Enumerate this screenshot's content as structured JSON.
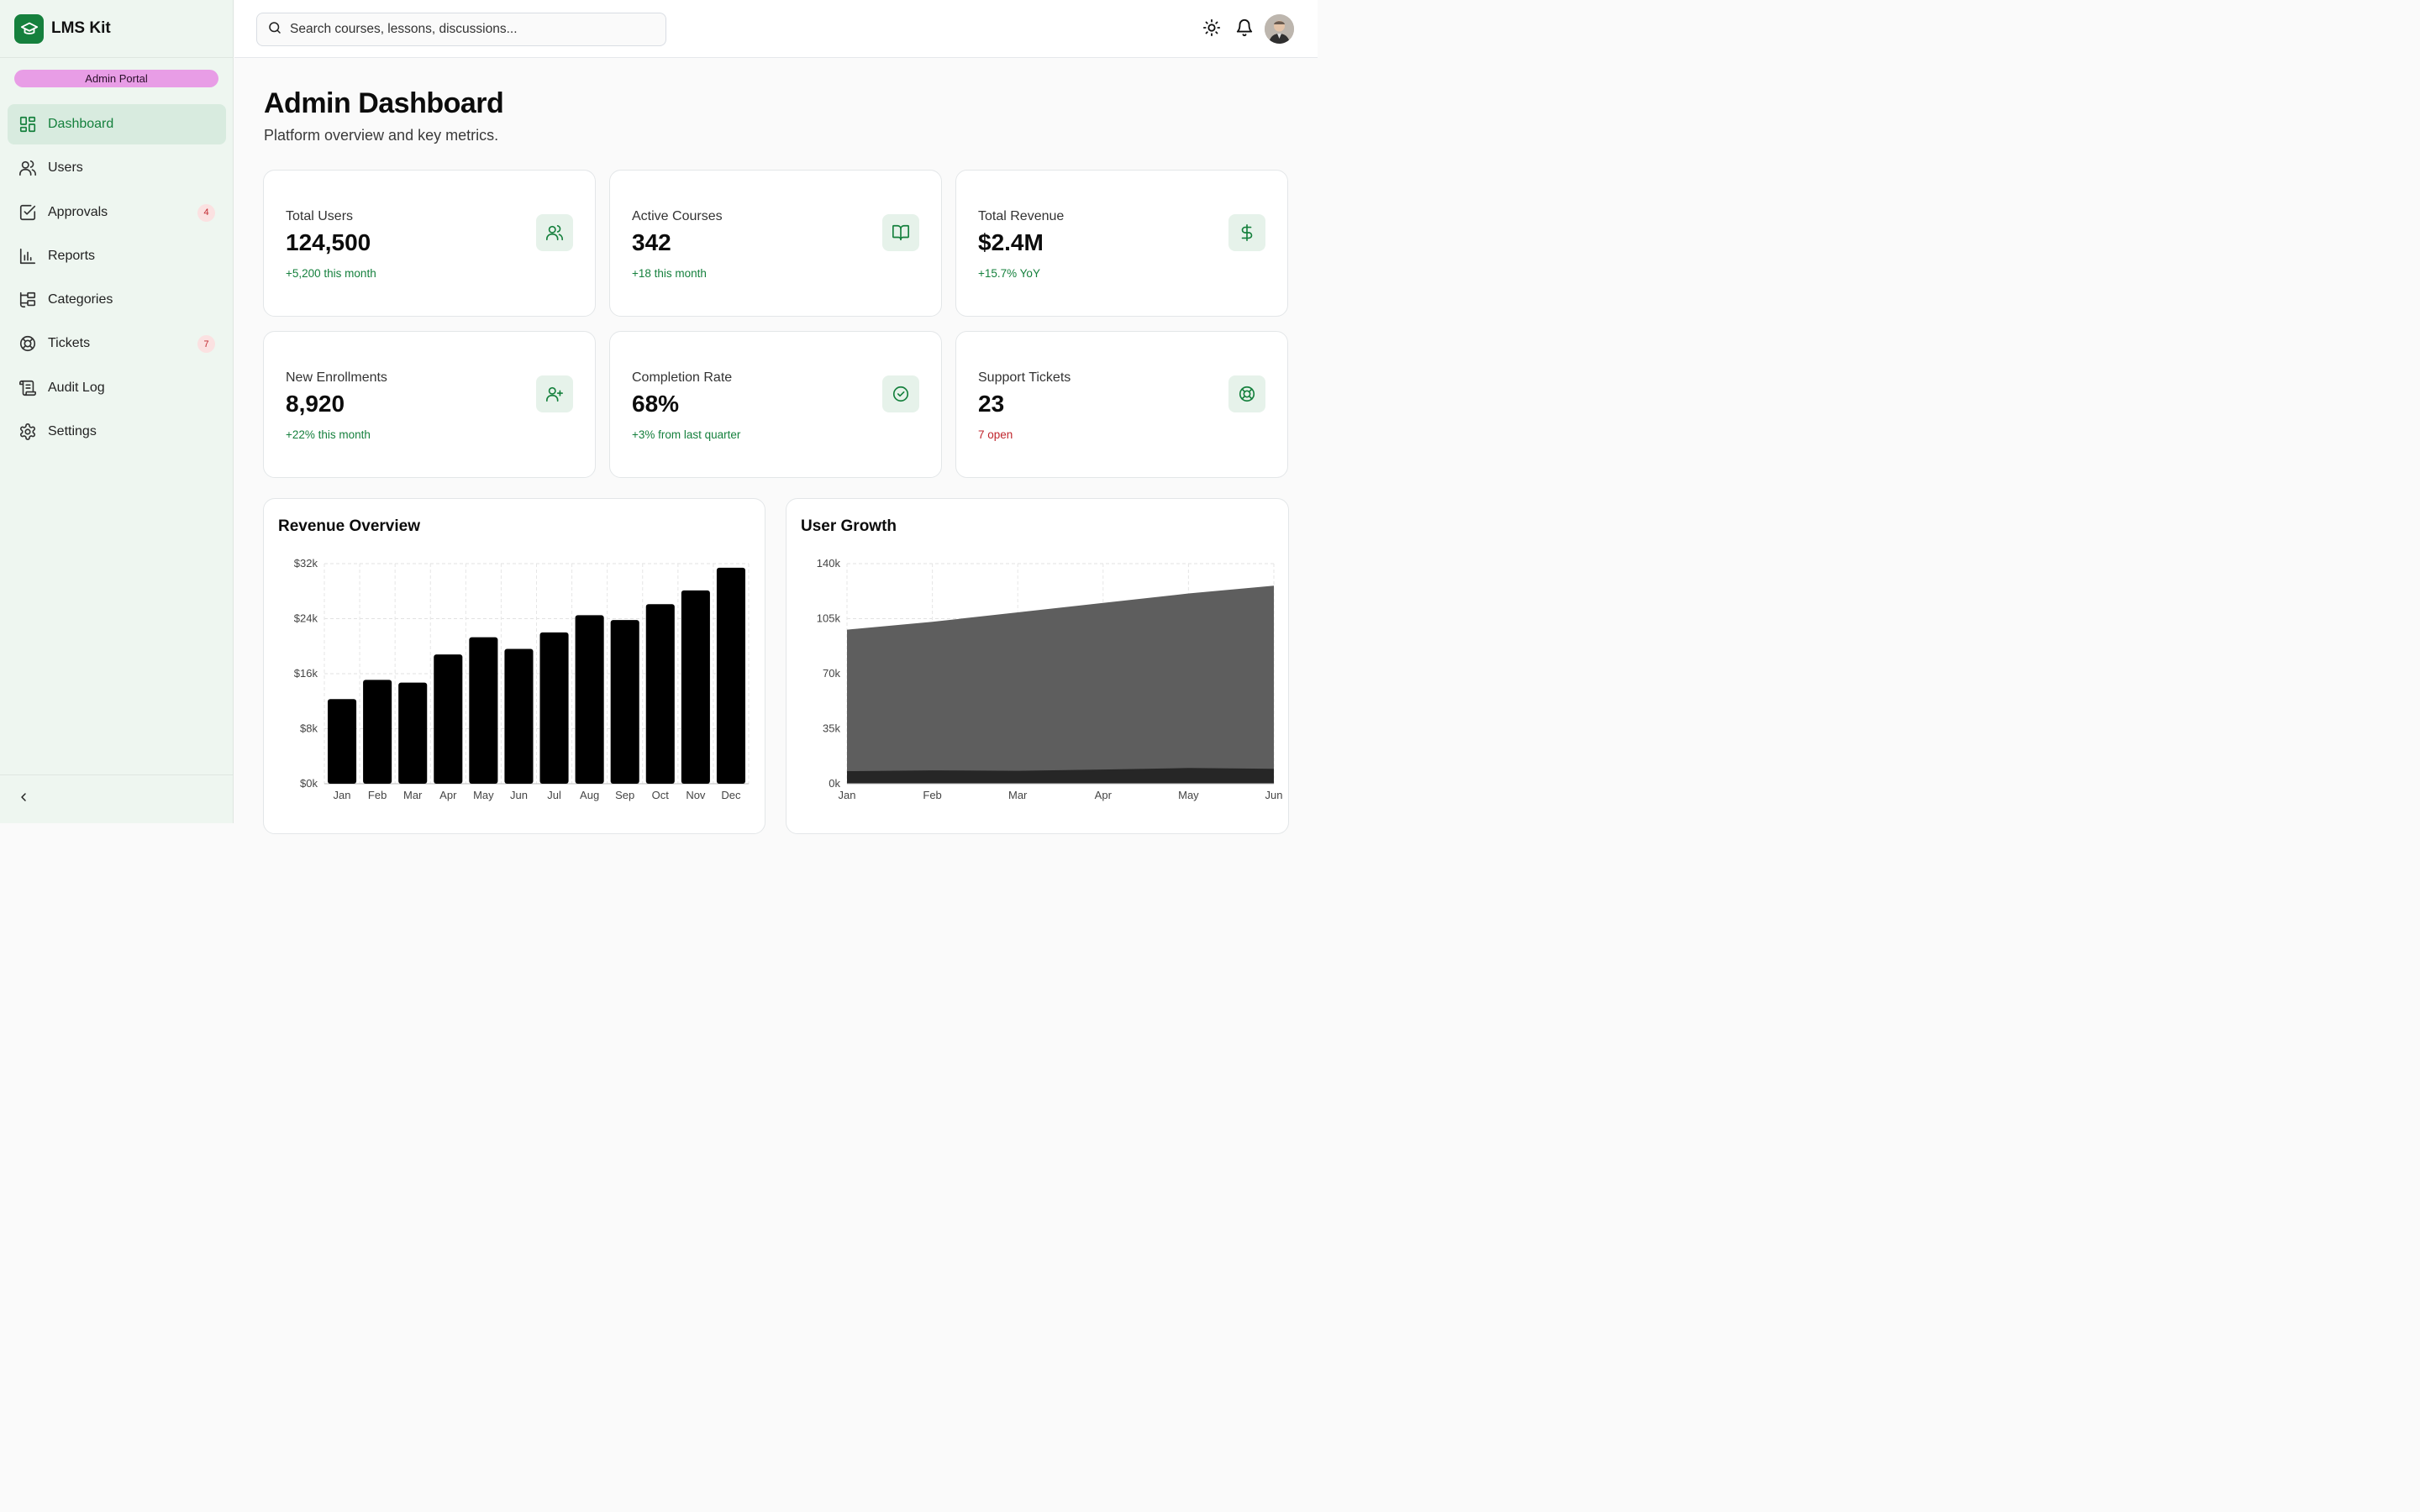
{
  "app": {
    "name": "LMS Kit",
    "portal": "Admin Portal"
  },
  "search": {
    "placeholder": "Search courses, lessons, discussions..."
  },
  "sidebar": {
    "items": [
      {
        "label": "Dashboard",
        "icon": "dashboard-icon",
        "active": true,
        "badge": ""
      },
      {
        "label": "Users",
        "icon": "users-icon",
        "badge": ""
      },
      {
        "label": "Approvals",
        "icon": "approvals-icon",
        "badge": "4"
      },
      {
        "label": "Reports",
        "icon": "reports-icon",
        "badge": ""
      },
      {
        "label": "Categories",
        "icon": "categories-icon",
        "badge": ""
      },
      {
        "label": "Tickets",
        "icon": "tickets-icon",
        "badge": "7"
      },
      {
        "label": "Audit Log",
        "icon": "audit-log-icon",
        "badge": ""
      },
      {
        "label": "Settings",
        "icon": "settings-icon",
        "badge": ""
      }
    ]
  },
  "header": {
    "title": "Admin Dashboard",
    "subtitle": "Platform overview and key metrics."
  },
  "stats": [
    {
      "label": "Total Users",
      "value": "124,500",
      "note": "+5,200 this month",
      "icon": "users-icon"
    },
    {
      "label": "Active Courses",
      "value": "342",
      "note": "+18 this month",
      "icon": "book-icon"
    },
    {
      "label": "Total Revenue",
      "value": "$2.4M",
      "note": "+15.7% YoY",
      "icon": "dollar-icon"
    },
    {
      "label": "New Enrollments",
      "value": "8,920",
      "note": "+22% this month",
      "icon": "user-plus-icon"
    },
    {
      "label": "Completion Rate",
      "value": "68%",
      "note": "+3% from last quarter",
      "icon": "check-circle-icon"
    },
    {
      "label": "Support Tickets",
      "value": "23",
      "note": "7 open",
      "icon": "lifebuoy-icon"
    }
  ],
  "colors": {
    "accent": "#15803d",
    "danger": "#c0262d",
    "pill": "#e89de6"
  },
  "chart_data": [
    {
      "type": "bar",
      "title": "Revenue Overview",
      "categories": [
        "Jan",
        "Feb",
        "Mar",
        "Apr",
        "May",
        "Jun",
        "Jul",
        "Aug",
        "Sep",
        "Oct",
        "Nov",
        "Dec"
      ],
      "values": [
        12300,
        15100,
        14700,
        18800,
        21300,
        19600,
        22000,
        24500,
        23800,
        26100,
        28100,
        31400
      ],
      "ylim": [
        0,
        32000
      ],
      "yticks": [
        "$0k",
        "$8k",
        "$16k",
        "$24k",
        "$32k"
      ],
      "grid": true
    },
    {
      "type": "area",
      "title": "User Growth",
      "categories": [
        "Jan",
        "Feb",
        "Mar",
        "Apr",
        "May",
        "Jun"
      ],
      "series": [
        {
          "values": [
            98000,
            103000,
            109000,
            115000,
            121000,
            126000
          ]
        },
        {
          "values": [
            8000,
            8500,
            8200,
            9000,
            10000,
            9500
          ]
        }
      ],
      "ylim": [
        0,
        140000
      ],
      "yticks": [
        "0k",
        "35k",
        "70k",
        "105k",
        "140k"
      ],
      "grid": true
    }
  ]
}
